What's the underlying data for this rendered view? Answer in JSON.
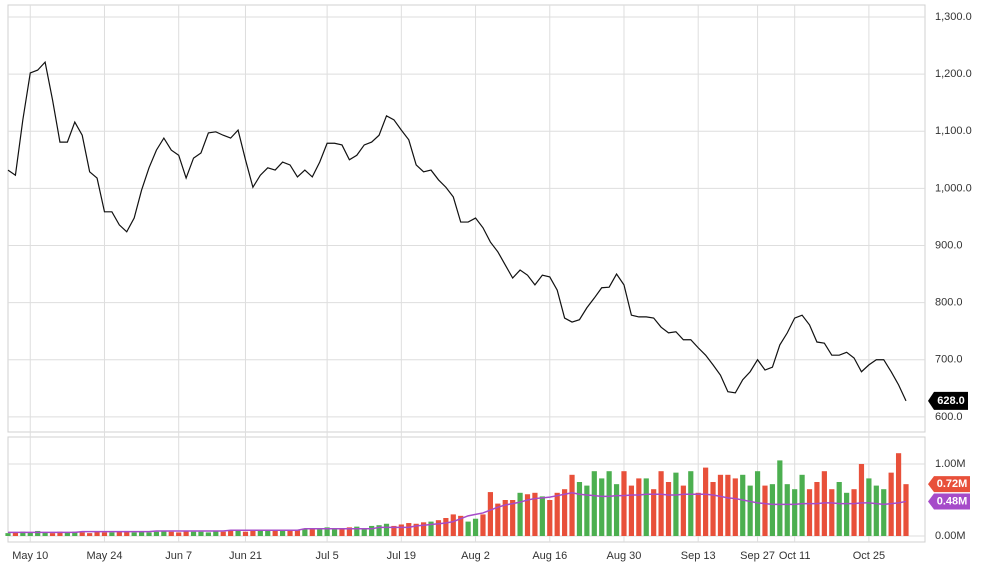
{
  "chart_data": [
    {
      "type": "line",
      "categories": [
        null,
        null,
        null,
        "May 10",
        null,
        null,
        null,
        null,
        null,
        null,
        null,
        null,
        null,
        "May 24",
        null,
        null,
        null,
        null,
        null,
        null,
        null,
        null,
        null,
        "Jun 7",
        null,
        null,
        null,
        null,
        null,
        null,
        null,
        null,
        "Jun 21",
        null,
        null,
        null,
        null,
        null,
        null,
        null,
        null,
        null,
        null,
        "Jul 5",
        null,
        null,
        null,
        null,
        null,
        null,
        null,
        null,
        null,
        "Jul 19",
        null,
        null,
        null,
        null,
        null,
        null,
        null,
        null,
        null,
        "Aug 2",
        null,
        null,
        null,
        null,
        null,
        null,
        null,
        null,
        null,
        "Aug 16",
        null,
        null,
        null,
        null,
        null,
        null,
        null,
        null,
        null,
        "Aug 30",
        null,
        null,
        null,
        null,
        null,
        null,
        null,
        null,
        null,
        "Sep 13",
        null,
        null,
        null,
        null,
        null,
        null,
        null,
        "Sep 27",
        null,
        null,
        null,
        null,
        "Oct 11",
        null,
        null,
        null,
        null,
        null,
        null,
        null,
        null,
        null,
        "Oct 25",
        null,
        null,
        null,
        null,
        null
      ],
      "values": [
        1032,
        1023,
        1120,
        1202,
        1207,
        1221,
        1155,
        1081,
        1081,
        1116,
        1093,
        1029,
        1018,
        959,
        959,
        936,
        924,
        948,
        997,
        1036,
        1067,
        1088,
        1067,
        1058,
        1018,
        1053,
        1062,
        1097,
        1099,
        1093,
        1088,
        1102,
        1050,
        1002,
        1023,
        1036,
        1032,
        1046,
        1041,
        1020,
        1032,
        1020,
        1046,
        1079,
        1079,
        1076,
        1050,
        1058,
        1076,
        1081,
        1093,
        1127,
        1120,
        1102,
        1085,
        1041,
        1029,
        1032,
        1015,
        1002,
        985,
        941,
        941,
        948,
        931,
        906,
        889,
        866,
        843,
        857,
        848,
        831,
        848,
        845,
        822,
        773,
        766,
        770,
        791,
        808,
        826,
        827,
        850,
        831,
        778,
        775,
        775,
        773,
        757,
        747,
        749,
        735,
        735,
        721,
        708,
        691,
        673,
        644,
        642,
        665,
        679,
        700,
        682,
        687,
        726,
        747,
        773,
        778,
        761,
        731,
        729,
        708,
        708,
        713,
        703,
        679,
        691,
        700,
        700,
        679,
        656,
        628
      ],
      "color": "#111111",
      "last_label": "628.0",
      "ylim": [
        577,
        1321
      ],
      "yticks": [
        {
          "value": 600,
          "label": "600.0"
        },
        {
          "value": 700,
          "label": "700.0"
        },
        {
          "value": 800,
          "label": "800.0"
        },
        {
          "value": 900,
          "label": "900.0"
        },
        {
          "value": 1000,
          "label": "1,000.0"
        },
        {
          "value": 1100,
          "label": "1,100.0"
        },
        {
          "value": 1200,
          "label": "1,200.0"
        },
        {
          "value": 1300,
          "label": "1,300.0"
        }
      ],
      "grid": true
    },
    {
      "type": "bar",
      "series": [
        {
          "up_color": "#4caf50",
          "down_color": "#e8503a",
          "last_label": "0.72M",
          "values": [
            0.04,
            0.05,
            0.06,
            0.05,
            0.07,
            0.05,
            0.04,
            0.06,
            0.05,
            0.06,
            0.05,
            0.04,
            0.06,
            0.05,
            0.05,
            0.06,
            0.07,
            0.05,
            0.06,
            0.05,
            0.06,
            0.07,
            0.06,
            0.05,
            0.07,
            0.06,
            0.06,
            0.05,
            0.07,
            0.06,
            0.08,
            0.07,
            0.06,
            0.08,
            0.07,
            0.08,
            0.09,
            0.08,
            0.07,
            0.09,
            0.1,
            0.11,
            0.09,
            0.12,
            0.1,
            0.11,
            0.12,
            0.13,
            0.11,
            0.14,
            0.15,
            0.17,
            0.14,
            0.16,
            0.18,
            0.17,
            0.19,
            0.2,
            0.22,
            0.25,
            0.3,
            0.28,
            0.2,
            0.24,
            0.3,
            0.61,
            0.45,
            0.5,
            0.5,
            0.6,
            0.58,
            0.6,
            0.55,
            0.5,
            0.6,
            0.65,
            0.85,
            0.75,
            0.7,
            0.9,
            0.8,
            0.9,
            0.72,
            0.9,
            0.7,
            0.8,
            0.8,
            0.65,
            0.9,
            0.75,
            0.88,
            0.7,
            0.9,
            0.6,
            0.95,
            0.75,
            0.85,
            0.85,
            0.8,
            0.85,
            0.7,
            0.9,
            0.7,
            0.72,
            1.05,
            0.72,
            0.65,
            0.85,
            0.65,
            0.75,
            0.9,
            0.65,
            0.75,
            0.6,
            0.65,
            1.0,
            0.8,
            0.7,
            0.65,
            0.88,
            1.15,
            0.72
          ]
        },
        {
          "color": "#a64bc9",
          "last_label": "0.48M",
          "values": [
            0.05,
            0.05,
            0.05,
            0.05,
            0.05,
            0.05,
            0.05,
            0.05,
            0.05,
            0.05,
            0.06,
            0.06,
            0.06,
            0.06,
            0.06,
            0.06,
            0.06,
            0.06,
            0.06,
            0.06,
            0.07,
            0.07,
            0.07,
            0.07,
            0.07,
            0.07,
            0.07,
            0.07,
            0.07,
            0.07,
            0.08,
            0.08,
            0.08,
            0.08,
            0.08,
            0.08,
            0.08,
            0.08,
            0.08,
            0.08,
            0.1,
            0.1,
            0.1,
            0.1,
            0.1,
            0.1,
            0.1,
            0.1,
            0.1,
            0.1,
            0.12,
            0.12,
            0.12,
            0.12,
            0.12,
            0.14,
            0.15,
            0.16,
            0.17,
            0.18,
            0.2,
            0.24,
            0.28,
            0.3,
            0.32,
            0.36,
            0.4,
            0.43,
            0.45,
            0.47,
            0.5,
            0.52,
            0.53,
            0.54,
            0.56,
            0.58,
            0.6,
            0.58,
            0.57,
            0.56,
            0.55,
            0.55,
            0.56,
            0.56,
            0.57,
            0.57,
            0.58,
            0.58,
            0.58,
            0.57,
            0.57,
            0.58,
            0.58,
            0.58,
            0.58,
            0.57,
            0.55,
            0.53,
            0.52,
            0.5,
            0.48,
            0.46,
            0.45,
            0.44,
            0.44,
            0.44,
            0.44,
            0.45,
            0.45,
            0.45,
            0.46,
            0.46,
            0.45,
            0.45,
            0.45,
            0.46,
            0.46,
            0.45,
            0.44,
            0.45,
            0.46,
            0.48
          ]
        }
      ],
      "ylim": [
        0,
        1.375
      ],
      "yticks": [
        {
          "value": 0,
          "label": "0.00M"
        },
        {
          "value": 1,
          "label": "1.00M"
        }
      ],
      "grid": true
    }
  ]
}
